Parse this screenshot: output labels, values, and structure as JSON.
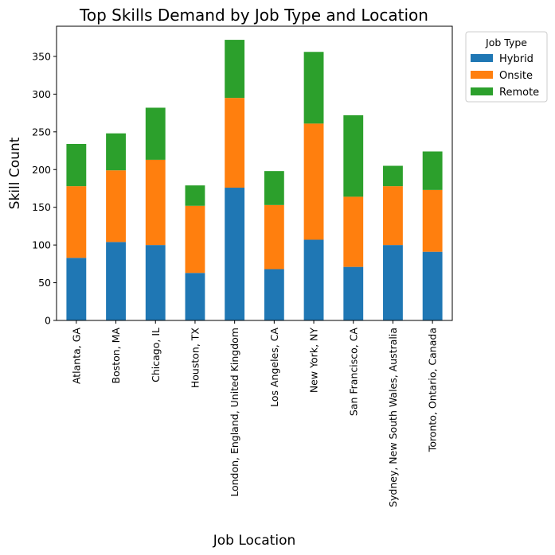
{
  "chart_data": {
    "type": "bar",
    "stacked": true,
    "title": "Top Skills Demand by Job Type and Location",
    "xlabel": "Job Location",
    "ylabel": "Skill Count",
    "ylim": [
      0,
      390
    ],
    "yticks": [
      0,
      50,
      100,
      150,
      200,
      250,
      300,
      350
    ],
    "grid": false,
    "legend": {
      "title": "Job Type",
      "placement": "outside-top-right"
    },
    "categories": [
      "Atlanta, GA",
      "Boston, MA",
      "Chicago, IL",
      "Houston, TX",
      "London, England, United Kingdom",
      "Los Angeles, CA",
      "New York, NY",
      "San Francisco, CA",
      "Sydney, New South Wales, Australia",
      "Toronto, Ontario, Canada"
    ],
    "series": [
      {
        "name": "Hybrid",
        "color": "#1f77b4",
        "values": [
          83,
          104,
          100,
          63,
          176,
          68,
          107,
          71,
          100,
          91
        ]
      },
      {
        "name": "Onsite",
        "color": "#ff7f0e",
        "values": [
          95,
          95,
          113,
          89,
          119,
          85,
          154,
          93,
          78,
          82
        ]
      },
      {
        "name": "Remote",
        "color": "#2ca02c",
        "values": [
          56,
          49,
          69,
          27,
          77,
          45,
          95,
          108,
          27,
          51
        ]
      }
    ]
  }
}
